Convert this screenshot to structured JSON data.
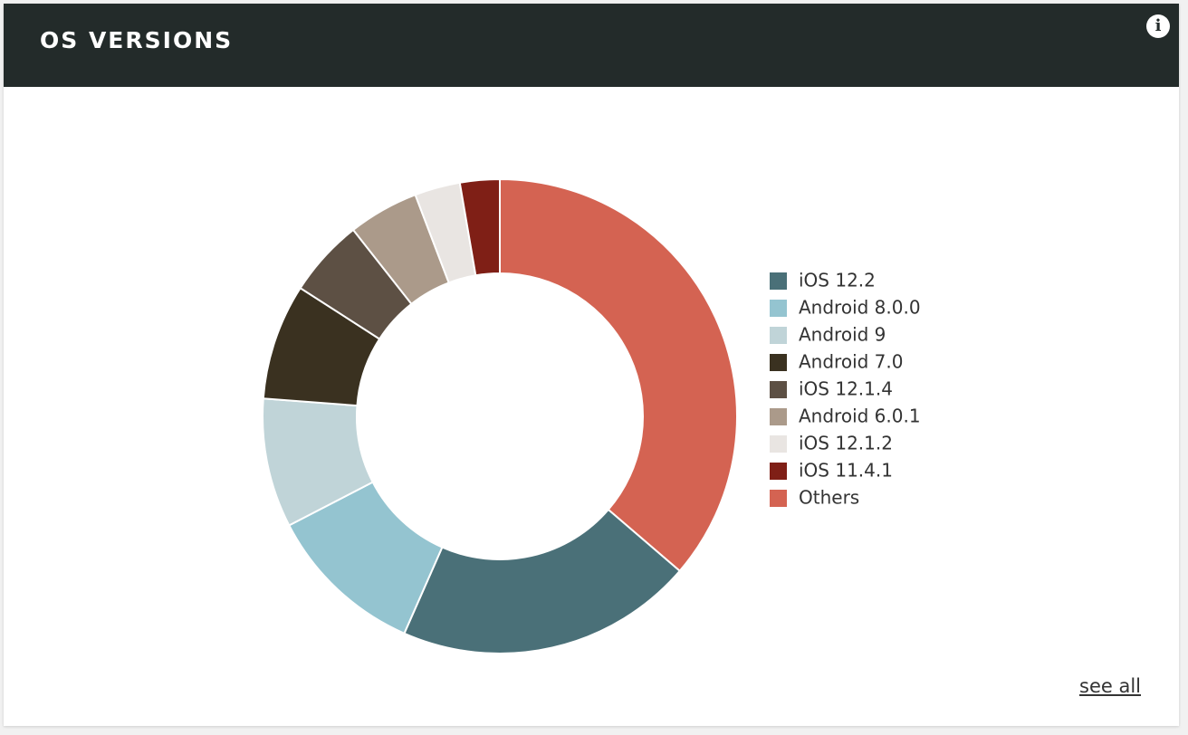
{
  "chart_data": {
    "type": "donut",
    "title": "OS VERSIONS",
    "series": [
      {
        "name": "iOS 12.2",
        "color": "#4a7078",
        "value": 20.3
      },
      {
        "name": "Android 8.0.0",
        "color": "#94c4d0",
        "value": 10.8
      },
      {
        "name": "Android 9",
        "color": "#c0d4d8",
        "value": 8.8
      },
      {
        "name": "Android 7.0",
        "color": "#3a3120",
        "value": 7.9
      },
      {
        "name": "iOS 12.1.4",
        "color": "#5d5044",
        "value": 5.3
      },
      {
        "name": "Android 6.0.1",
        "color": "#ab9a8a",
        "value": 4.8
      },
      {
        "name": "iOS 12.1.2",
        "color": "#e9e5e2",
        "value": 3.1
      },
      {
        "name": "iOS 11.4.1",
        "color": "#7f1f16",
        "value": 2.7
      },
      {
        "name": "Others",
        "color": "#d46352",
        "value": 36.3
      }
    ],
    "legend": "right"
  },
  "link_text": "see all"
}
